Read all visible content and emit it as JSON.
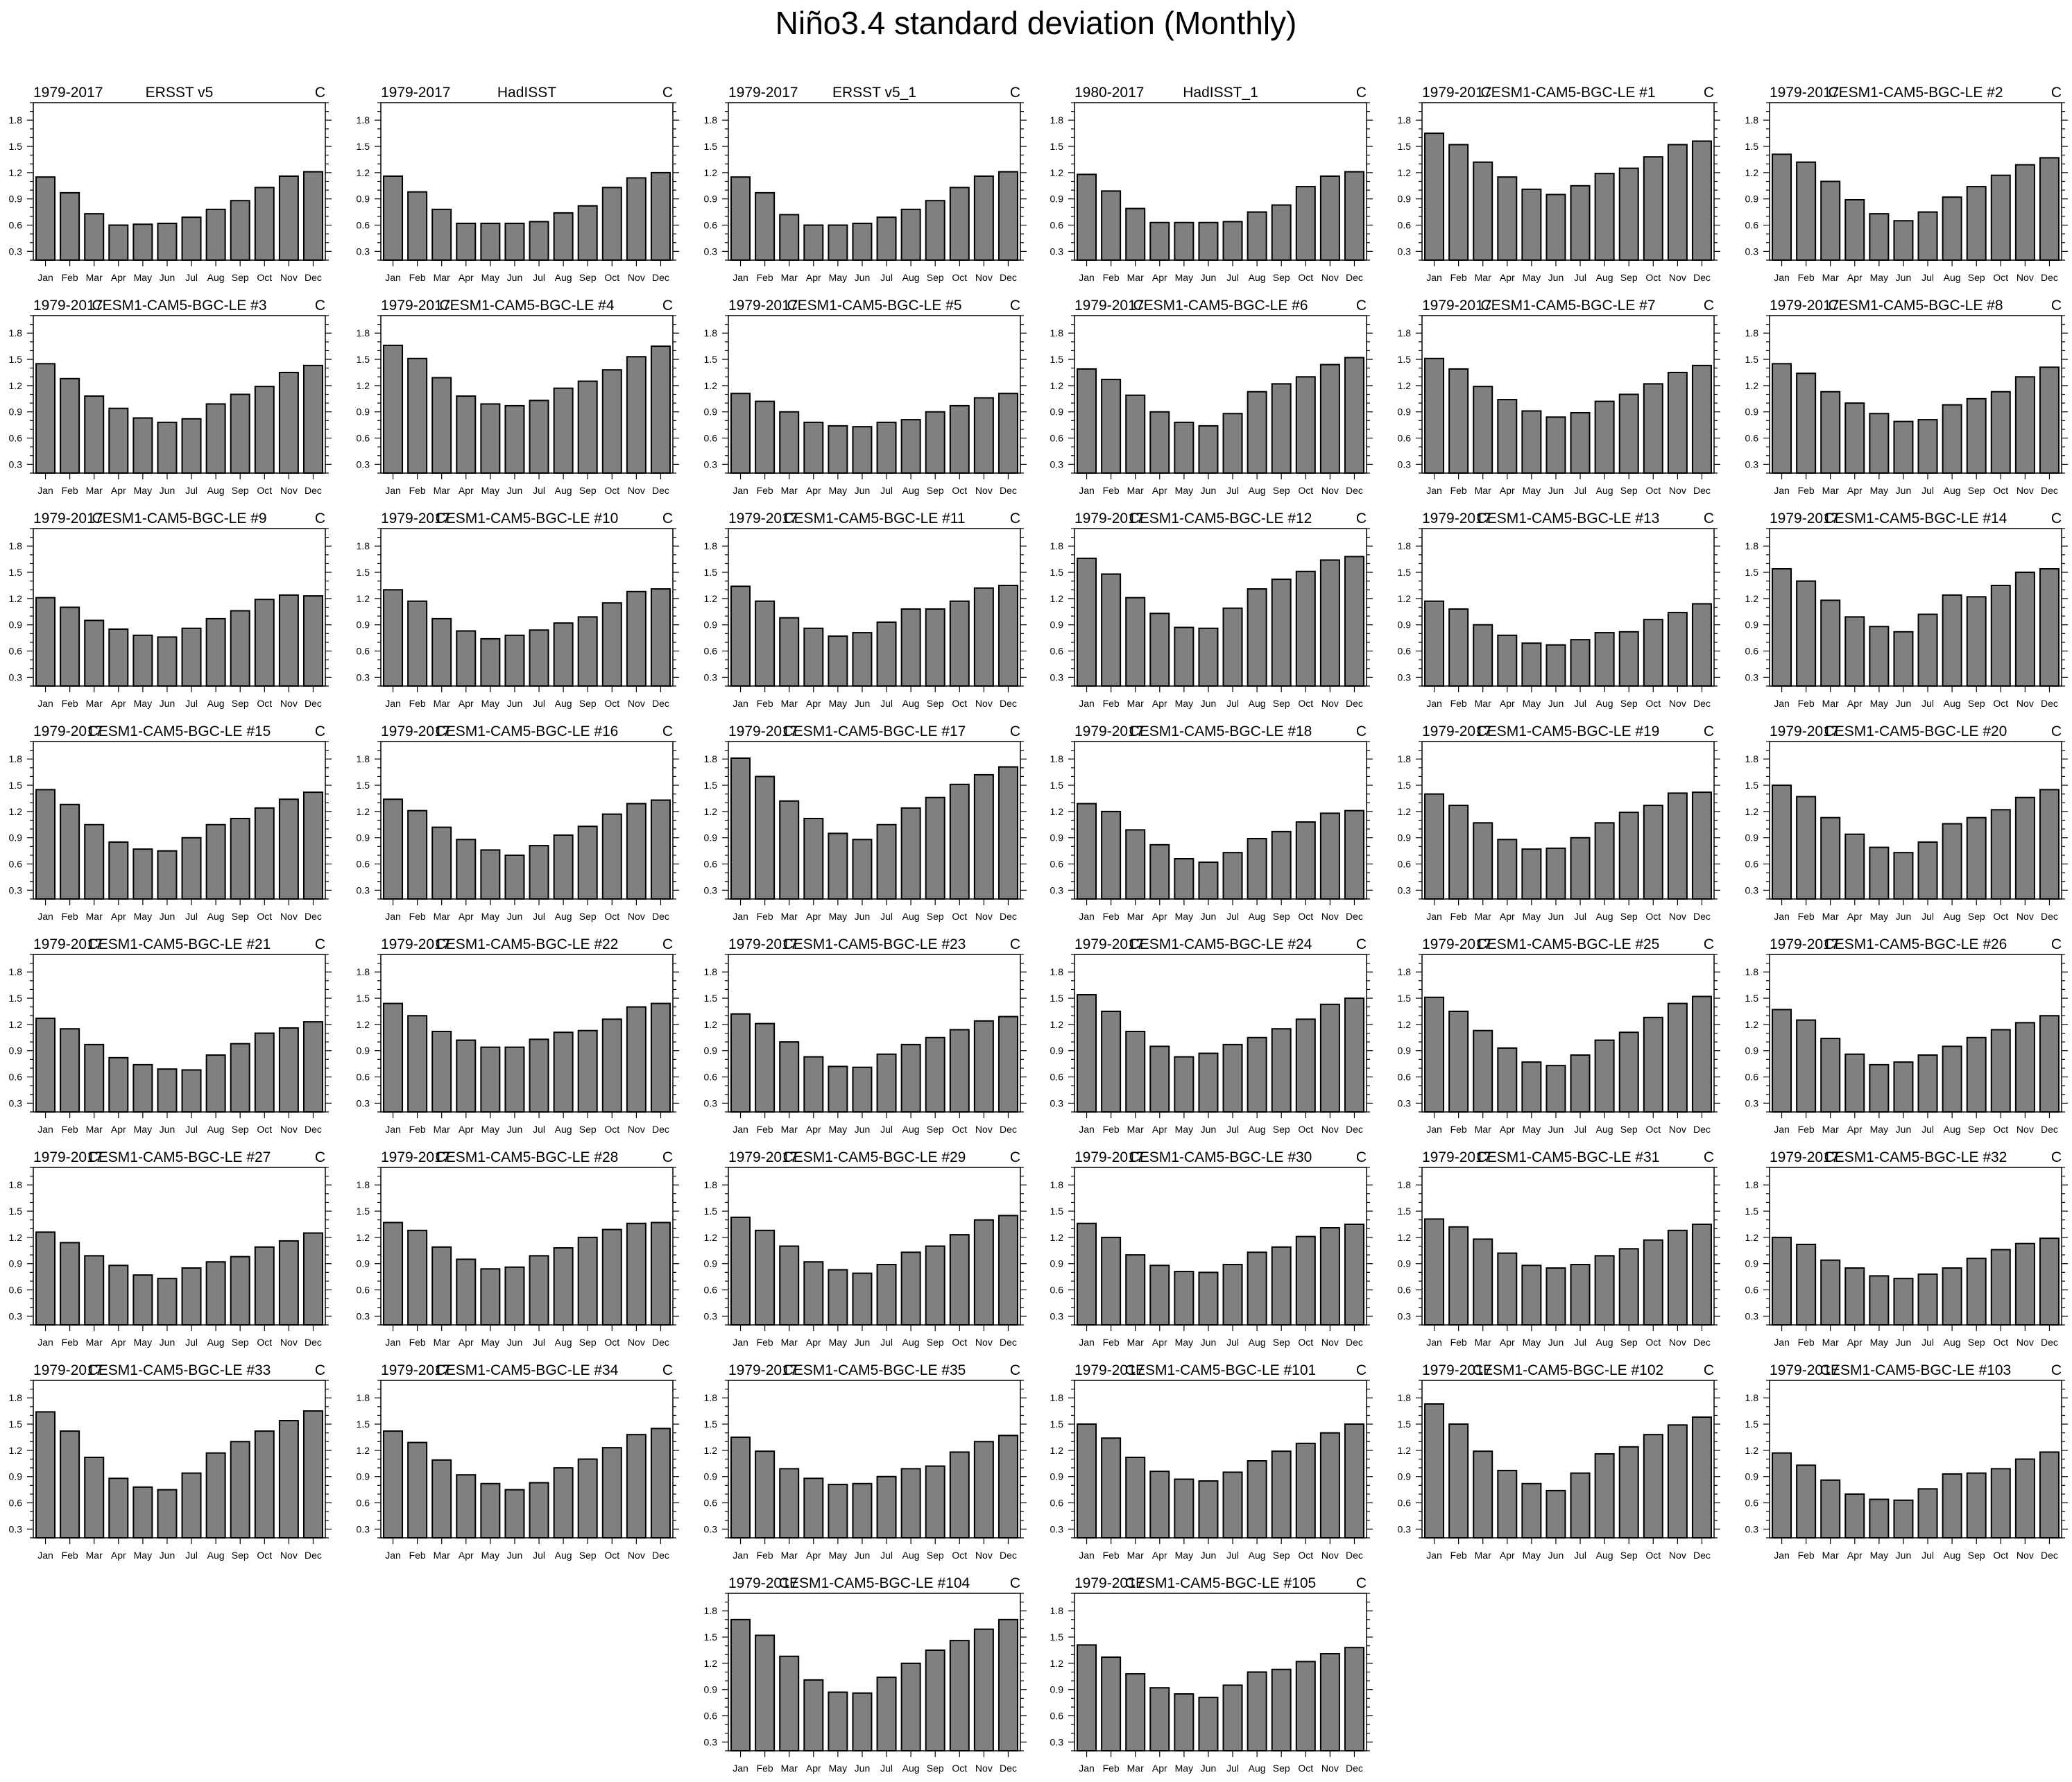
{
  "chart_data": {
    "type": "bar",
    "title": "Niño3.4 standard deviation (Monthly)",
    "categories": [
      "Jan",
      "Feb",
      "Mar",
      "Apr",
      "May",
      "Jun",
      "Jul",
      "Aug",
      "Sep",
      "Oct",
      "Nov",
      "Dec"
    ],
    "y_ticks": [
      "0.3",
      "0.6",
      "0.9",
      "1.2",
      "1.5",
      "1.8"
    ],
    "ylim": [
      0.2,
      2.0
    ],
    "grid": false,
    "bar_color": "#808080",
    "panels": [
      {
        "period": "1979-2017",
        "title": "ERSST v5",
        "units": "C",
        "values": [
          1.15,
          0.97,
          0.73,
          0.6,
          0.61,
          0.62,
          0.69,
          0.78,
          0.88,
          1.03,
          1.16,
          1.21
        ]
      },
      {
        "period": "1979-2017",
        "title": "HadISST",
        "units": "C",
        "values": [
          1.16,
          0.98,
          0.78,
          0.62,
          0.62,
          0.62,
          0.64,
          0.74,
          0.82,
          1.03,
          1.14,
          1.2
        ]
      },
      {
        "period": "1979-2017",
        "title": "ERSST v5_1",
        "units": "C",
        "values": [
          1.15,
          0.97,
          0.72,
          0.6,
          0.6,
          0.62,
          0.69,
          0.78,
          0.88,
          1.03,
          1.16,
          1.21
        ]
      },
      {
        "period": "1980-2017",
        "title": "HadISST_1",
        "units": "C",
        "values": [
          1.18,
          0.99,
          0.79,
          0.63,
          0.63,
          0.63,
          0.64,
          0.75,
          0.83,
          1.04,
          1.16,
          1.21
        ]
      },
      {
        "period": "1979-2017",
        "title": "CESM1-CAM5-BGC-LE #1",
        "units": "C",
        "values": [
          1.65,
          1.52,
          1.32,
          1.15,
          1.01,
          0.95,
          1.05,
          1.19,
          1.25,
          1.38,
          1.52,
          1.56
        ]
      },
      {
        "period": "1979-2017",
        "title": "CESM1-CAM5-BGC-LE #2",
        "units": "C",
        "values": [
          1.41,
          1.32,
          1.1,
          0.89,
          0.73,
          0.65,
          0.75,
          0.92,
          1.04,
          1.17,
          1.29,
          1.37
        ]
      },
      {
        "period": "1979-2017",
        "title": "CESM1-CAM5-BGC-LE #3",
        "units": "C",
        "values": [
          1.45,
          1.28,
          1.08,
          0.94,
          0.83,
          0.78,
          0.82,
          0.99,
          1.1,
          1.19,
          1.35,
          1.43
        ]
      },
      {
        "period": "1979-2017",
        "title": "CESM1-CAM5-BGC-LE #4",
        "units": "C",
        "values": [
          1.66,
          1.51,
          1.29,
          1.08,
          0.99,
          0.97,
          1.03,
          1.17,
          1.25,
          1.38,
          1.53,
          1.65
        ]
      },
      {
        "period": "1979-2017",
        "title": "CESM1-CAM5-BGC-LE #5",
        "units": "C",
        "values": [
          1.11,
          1.02,
          0.9,
          0.78,
          0.74,
          0.73,
          0.78,
          0.81,
          0.9,
          0.97,
          1.06,
          1.11
        ]
      },
      {
        "period": "1979-2017",
        "title": "CESM1-CAM5-BGC-LE #6",
        "units": "C",
        "values": [
          1.39,
          1.27,
          1.09,
          0.9,
          0.78,
          0.74,
          0.88,
          1.13,
          1.22,
          1.3,
          1.44,
          1.52
        ]
      },
      {
        "period": "1979-2017",
        "title": "CESM1-CAM5-BGC-LE #7",
        "units": "C",
        "values": [
          1.51,
          1.39,
          1.19,
          1.04,
          0.91,
          0.84,
          0.89,
          1.02,
          1.1,
          1.22,
          1.35,
          1.43
        ]
      },
      {
        "period": "1979-2017",
        "title": "CESM1-CAM5-BGC-LE #8",
        "units": "C",
        "values": [
          1.45,
          1.34,
          1.13,
          1.0,
          0.88,
          0.79,
          0.81,
          0.98,
          1.05,
          1.13,
          1.3,
          1.41
        ]
      },
      {
        "period": "1979-2017",
        "title": "CESM1-CAM5-BGC-LE #9",
        "units": "C",
        "values": [
          1.21,
          1.1,
          0.95,
          0.85,
          0.78,
          0.76,
          0.86,
          0.97,
          1.06,
          1.19,
          1.24,
          1.23
        ]
      },
      {
        "period": "1979-2017",
        "title": "CESM1-CAM5-BGC-LE #10",
        "units": "C",
        "values": [
          1.3,
          1.17,
          0.97,
          0.83,
          0.74,
          0.78,
          0.84,
          0.92,
          0.99,
          1.15,
          1.28,
          1.31
        ]
      },
      {
        "period": "1979-2017",
        "title": "CESM1-CAM5-BGC-LE #11",
        "units": "C",
        "values": [
          1.34,
          1.17,
          0.98,
          0.86,
          0.77,
          0.81,
          0.93,
          1.08,
          1.08,
          1.17,
          1.32,
          1.35
        ]
      },
      {
        "period": "1979-2017",
        "title": "CESM1-CAM5-BGC-LE #12",
        "units": "C",
        "values": [
          1.66,
          1.48,
          1.21,
          1.03,
          0.87,
          0.86,
          1.09,
          1.31,
          1.42,
          1.51,
          1.64,
          1.68
        ]
      },
      {
        "period": "1979-2017",
        "title": "CESM1-CAM5-BGC-LE #13",
        "units": "C",
        "values": [
          1.17,
          1.08,
          0.9,
          0.78,
          0.69,
          0.67,
          0.73,
          0.81,
          0.82,
          0.96,
          1.04,
          1.14
        ]
      },
      {
        "period": "1979-2017",
        "title": "CESM1-CAM5-BGC-LE #14",
        "units": "C",
        "values": [
          1.54,
          1.4,
          1.18,
          0.99,
          0.88,
          0.82,
          1.02,
          1.24,
          1.22,
          1.35,
          1.5,
          1.54
        ]
      },
      {
        "period": "1979-2017",
        "title": "CESM1-CAM5-BGC-LE #15",
        "units": "C",
        "values": [
          1.45,
          1.28,
          1.05,
          0.85,
          0.77,
          0.75,
          0.9,
          1.05,
          1.12,
          1.24,
          1.34,
          1.42
        ]
      },
      {
        "period": "1979-2017",
        "title": "CESM1-CAM5-BGC-LE #16",
        "units": "C",
        "values": [
          1.34,
          1.21,
          1.02,
          0.88,
          0.76,
          0.7,
          0.81,
          0.93,
          1.03,
          1.17,
          1.29,
          1.33
        ]
      },
      {
        "period": "1979-2017",
        "title": "CESM1-CAM5-BGC-LE #17",
        "units": "C",
        "values": [
          1.81,
          1.6,
          1.32,
          1.12,
          0.95,
          0.88,
          1.05,
          1.24,
          1.36,
          1.51,
          1.62,
          1.71
        ]
      },
      {
        "period": "1979-2017",
        "title": "CESM1-CAM5-BGC-LE #18",
        "units": "C",
        "values": [
          1.29,
          1.2,
          0.99,
          0.82,
          0.66,
          0.62,
          0.73,
          0.89,
          0.97,
          1.08,
          1.18,
          1.21
        ]
      },
      {
        "period": "1979-2017",
        "title": "CESM1-CAM5-BGC-LE #19",
        "units": "C",
        "values": [
          1.4,
          1.27,
          1.07,
          0.88,
          0.77,
          0.78,
          0.9,
          1.07,
          1.19,
          1.27,
          1.41,
          1.42
        ]
      },
      {
        "period": "1979-2017",
        "title": "CESM1-CAM5-BGC-LE #20",
        "units": "C",
        "values": [
          1.5,
          1.37,
          1.13,
          0.94,
          0.79,
          0.73,
          0.85,
          1.06,
          1.13,
          1.22,
          1.36,
          1.45
        ]
      },
      {
        "period": "1979-2017",
        "title": "CESM1-CAM5-BGC-LE #21",
        "units": "C",
        "values": [
          1.27,
          1.15,
          0.97,
          0.82,
          0.74,
          0.69,
          0.68,
          0.85,
          0.98,
          1.1,
          1.16,
          1.23
        ]
      },
      {
        "period": "1979-2017",
        "title": "CESM1-CAM5-BGC-LE #22",
        "units": "C",
        "values": [
          1.44,
          1.3,
          1.12,
          1.02,
          0.94,
          0.94,
          1.03,
          1.11,
          1.13,
          1.26,
          1.4,
          1.44
        ]
      },
      {
        "period": "1979-2017",
        "title": "CESM1-CAM5-BGC-LE #23",
        "units": "C",
        "values": [
          1.32,
          1.21,
          1.0,
          0.83,
          0.72,
          0.71,
          0.86,
          0.97,
          1.05,
          1.14,
          1.24,
          1.29
        ]
      },
      {
        "period": "1979-2017",
        "title": "CESM1-CAM5-BGC-LE #24",
        "units": "C",
        "values": [
          1.54,
          1.35,
          1.12,
          0.95,
          0.83,
          0.87,
          0.97,
          1.05,
          1.15,
          1.26,
          1.43,
          1.5
        ]
      },
      {
        "period": "1979-2017",
        "title": "CESM1-CAM5-BGC-LE #25",
        "units": "C",
        "values": [
          1.51,
          1.35,
          1.13,
          0.93,
          0.77,
          0.73,
          0.85,
          1.02,
          1.11,
          1.28,
          1.44,
          1.52
        ]
      },
      {
        "period": "1979-2017",
        "title": "CESM1-CAM5-BGC-LE #26",
        "units": "C",
        "values": [
          1.37,
          1.25,
          1.04,
          0.86,
          0.74,
          0.77,
          0.85,
          0.95,
          1.05,
          1.14,
          1.22,
          1.3
        ]
      },
      {
        "period": "1979-2017",
        "title": "CESM1-CAM5-BGC-LE #27",
        "units": "C",
        "values": [
          1.26,
          1.14,
          0.99,
          0.88,
          0.77,
          0.73,
          0.85,
          0.92,
          0.98,
          1.09,
          1.16,
          1.25
        ]
      },
      {
        "period": "1979-2017",
        "title": "CESM1-CAM5-BGC-LE #28",
        "units": "C",
        "values": [
          1.37,
          1.28,
          1.09,
          0.95,
          0.84,
          0.86,
          0.99,
          1.08,
          1.2,
          1.29,
          1.36,
          1.37
        ]
      },
      {
        "period": "1979-2017",
        "title": "CESM1-CAM5-BGC-LE #29",
        "units": "C",
        "values": [
          1.43,
          1.28,
          1.1,
          0.92,
          0.83,
          0.79,
          0.89,
          1.03,
          1.1,
          1.23,
          1.4,
          1.45
        ]
      },
      {
        "period": "1979-2017",
        "title": "CESM1-CAM5-BGC-LE #30",
        "units": "C",
        "values": [
          1.36,
          1.2,
          1.0,
          0.88,
          0.81,
          0.8,
          0.89,
          1.03,
          1.09,
          1.21,
          1.31,
          1.35
        ]
      },
      {
        "period": "1979-2017",
        "title": "CESM1-CAM5-BGC-LE #31",
        "units": "C",
        "values": [
          1.41,
          1.32,
          1.18,
          1.02,
          0.88,
          0.85,
          0.89,
          0.99,
          1.07,
          1.17,
          1.28,
          1.35
        ]
      },
      {
        "period": "1979-2017",
        "title": "CESM1-CAM5-BGC-LE #32",
        "units": "C",
        "values": [
          1.2,
          1.12,
          0.94,
          0.85,
          0.76,
          0.73,
          0.78,
          0.85,
          0.96,
          1.06,
          1.13,
          1.19
        ]
      },
      {
        "period": "1979-2017",
        "title": "CESM1-CAM5-BGC-LE #33",
        "units": "C",
        "values": [
          1.64,
          1.42,
          1.12,
          0.88,
          0.78,
          0.75,
          0.94,
          1.17,
          1.3,
          1.42,
          1.54,
          1.65
        ]
      },
      {
        "period": "1979-2017",
        "title": "CESM1-CAM5-BGC-LE #34",
        "units": "C",
        "values": [
          1.42,
          1.29,
          1.09,
          0.92,
          0.82,
          0.75,
          0.83,
          1.0,
          1.1,
          1.23,
          1.38,
          1.45
        ]
      },
      {
        "period": "1979-2017",
        "title": "CESM1-CAM5-BGC-LE #35",
        "units": "C",
        "values": [
          1.35,
          1.19,
          0.99,
          0.88,
          0.81,
          0.82,
          0.9,
          0.99,
          1.02,
          1.18,
          1.3,
          1.37
        ]
      },
      {
        "period": "1979-2017",
        "title": "CESM1-CAM5-BGC-LE #101",
        "units": "C",
        "values": [
          1.5,
          1.34,
          1.12,
          0.96,
          0.87,
          0.85,
          0.95,
          1.08,
          1.19,
          1.28,
          1.4,
          1.5
        ]
      },
      {
        "period": "1979-2017",
        "title": "CESM1-CAM5-BGC-LE #102",
        "units": "C",
        "values": [
          1.73,
          1.5,
          1.19,
          0.97,
          0.82,
          0.74,
          0.94,
          1.16,
          1.24,
          1.38,
          1.49,
          1.58
        ]
      },
      {
        "period": "1979-2017",
        "title": "CESM1-CAM5-BGC-LE #103",
        "units": "C",
        "values": [
          1.17,
          1.03,
          0.86,
          0.7,
          0.64,
          0.63,
          0.76,
          0.93,
          0.94,
          0.99,
          1.1,
          1.18
        ]
      },
      {
        "period": "1979-2017",
        "title": "CESM1-CAM5-BGC-LE #104",
        "units": "C",
        "values": [
          1.7,
          1.52,
          1.28,
          1.01,
          0.87,
          0.86,
          1.04,
          1.2,
          1.35,
          1.46,
          1.59,
          1.7
        ]
      },
      {
        "period": "1979-2017",
        "title": "CESM1-CAM5-BGC-LE #105",
        "units": "C",
        "values": [
          1.41,
          1.27,
          1.08,
          0.92,
          0.85,
          0.81,
          0.95,
          1.1,
          1.13,
          1.22,
          1.31,
          1.38
        ]
      }
    ]
  }
}
